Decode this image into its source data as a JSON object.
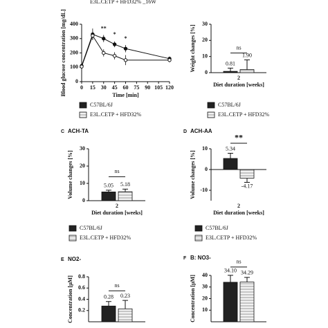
{
  "chart_data": [
    {
      "type": "line",
      "top_text": "E3L.CETP + HFD32% _16W",
      "ylabel": "Blood glucose concentration [mg/dL]",
      "xlabel": "Time [min]",
      "x": [
        0,
        15,
        30,
        45,
        60,
        120
      ],
      "xlim": [
        0,
        120
      ],
      "xticks": [
        0,
        15,
        30,
        45,
        60,
        75,
        90,
        105,
        120
      ],
      "ylim": [
        0,
        400
      ],
      "yticks": [
        0,
        100,
        200,
        300,
        400
      ],
      "series": [
        {
          "name": "C57BL/6J",
          "color": "#222222",
          "hatch": false,
          "values": [
            110,
            330,
            300,
            260,
            230,
            160
          ],
          "errors": [
            10,
            40,
            25,
            20,
            25,
            15
          ]
        },
        {
          "name": "E3L.CETP + HFD32%",
          "color": "#e6e6e6",
          "hatch": true,
          "values": [
            105,
            320,
            200,
            180,
            150,
            150
          ],
          "errors": [
            10,
            30,
            25,
            25,
            35,
            15
          ]
        }
      ],
      "annotations": [
        {
          "x": 30,
          "text": "**"
        },
        {
          "x": 45,
          "text": "*"
        },
        {
          "x": 60,
          "text": "*"
        }
      ]
    },
    {
      "type": "bar",
      "ylabel": "Weight changes [%]",
      "xlabel": "Diet duration [weeks]",
      "categories": [
        "2"
      ],
      "ylim": [
        0,
        30
      ],
      "yticks": [
        0,
        10,
        20,
        30
      ],
      "significance": "ns",
      "series": [
        {
          "name": "C57BL/6J",
          "color": "#222222",
          "hatch": false,
          "values": [
            0.81
          ],
          "value_labels": [
            "0.81"
          ],
          "errors": [
            2
          ]
        },
        {
          "name": "E3L.CETP + HFD32%",
          "color": "#e6e6e6",
          "hatch": true,
          "values": [
            1.9
          ],
          "value_labels": [
            "1.90"
          ],
          "errors": [
            6
          ]
        }
      ]
    },
    {
      "type": "bar",
      "panel": "C",
      "title": "ACH-TA",
      "ylabel": "Volume changes [%]",
      "xlabel": "Diet duration [weeks]",
      "categories": [
        "2"
      ],
      "ylim": [
        0,
        30
      ],
      "yticks": [
        0,
        10,
        20,
        30
      ],
      "significance": "ns",
      "series": [
        {
          "name": "C57BL/6J",
          "color": "#222222",
          "hatch": false,
          "values": [
            5.05
          ],
          "value_labels": [
            "5.05"
          ],
          "errors": [
            1
          ]
        },
        {
          "name": "E3L.CETP + HFD32%",
          "color": "#e6e6e6",
          "hatch": true,
          "values": [
            5.18
          ],
          "value_labels": [
            "5.18"
          ],
          "errors": [
            1.5
          ]
        }
      ]
    },
    {
      "type": "bar",
      "panel": "D",
      "title": "ACH-AA",
      "ylabel": "Volume changes [%]",
      "xlabel": "Diet duration [weeks]",
      "categories": [
        "2"
      ],
      "ylim": [
        -15,
        10
      ],
      "yticks": [
        -10,
        0,
        10
      ],
      "significance": "**",
      "series": [
        {
          "name": "C57BL/6J",
          "color": "#222222",
          "hatch": false,
          "values": [
            5.34
          ],
          "value_labels": [
            "5.34"
          ],
          "errors": [
            2.5
          ]
        },
        {
          "name": "E3L.CETP + HFD32%",
          "color": "#e6e6e6",
          "hatch": true,
          "values": [
            -4.17
          ],
          "value_labels": [
            "-4.17"
          ],
          "errors": [
            2
          ]
        }
      ]
    },
    {
      "type": "bar",
      "panel": "E",
      "title": "NO2-",
      "ylabel": "Concentration [µM]",
      "ylim": [
        0,
        0.8
      ],
      "yticks": [
        0.2,
        0.4,
        0.6,
        0.8
      ],
      "significance": "ns",
      "series": [
        {
          "color": "#222222",
          "hatch": false,
          "values": [
            0.28
          ],
          "value_labels": [
            "0.28"
          ],
          "errors": [
            0.08
          ]
        },
        {
          "color": "#e6e6e6",
          "hatch": true,
          "values": [
            0.23
          ],
          "value_labels": [
            "0.23"
          ],
          "errors": [
            0.15
          ]
        }
      ]
    },
    {
      "type": "bar",
      "panel": "F",
      "title": "B: NO3-",
      "ylabel": "Concentration [µM]",
      "ylim": [
        0,
        40
      ],
      "yticks": [
        10,
        20,
        30,
        40
      ],
      "significance": "ns",
      "series": [
        {
          "color": "#222222",
          "hatch": false,
          "values": [
            34.1
          ],
          "value_labels": [
            "34.10"
          ],
          "errors": [
            6
          ]
        },
        {
          "color": "#e6e6e6",
          "hatch": true,
          "values": [
            34.29
          ],
          "value_labels": [
            "34.29"
          ],
          "errors": [
            4
          ]
        }
      ]
    }
  ]
}
